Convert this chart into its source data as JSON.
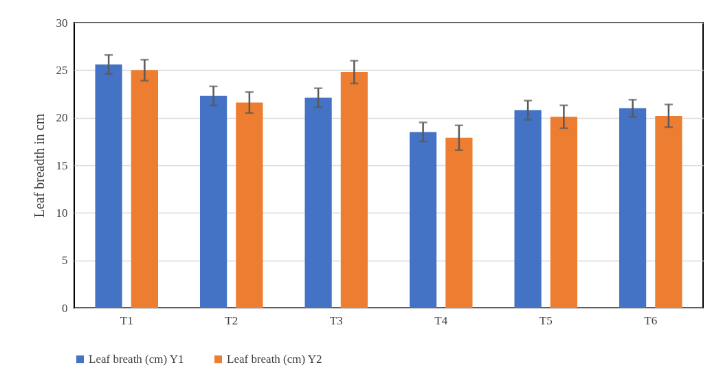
{
  "chart_data": {
    "type": "bar",
    "ylabel": "Leaf breadth in cm",
    "categories": [
      "T1",
      "T2",
      "T3",
      "T4",
      "T5",
      "T6"
    ],
    "series": [
      {
        "name": "Leaf breath (cm) Y1",
        "color": "#4472c4",
        "values": [
          25.6,
          22.3,
          22.1,
          18.5,
          20.8,
          21.0
        ],
        "errors": [
          1.0,
          1.0,
          1.0,
          1.0,
          1.0,
          0.9
        ]
      },
      {
        "name": "Leaf breath (cm) Y2",
        "color": "#ed7d31",
        "values": [
          25.0,
          21.6,
          24.8,
          17.9,
          20.1,
          20.2
        ],
        "errors": [
          1.1,
          1.1,
          1.2,
          1.3,
          1.2,
          1.2
        ]
      }
    ],
    "ylim": [
      0,
      30
    ],
    "yticks": [
      0,
      5,
      10,
      15,
      20,
      25,
      30
    ],
    "grid": "y",
    "legend": "bottom"
  }
}
